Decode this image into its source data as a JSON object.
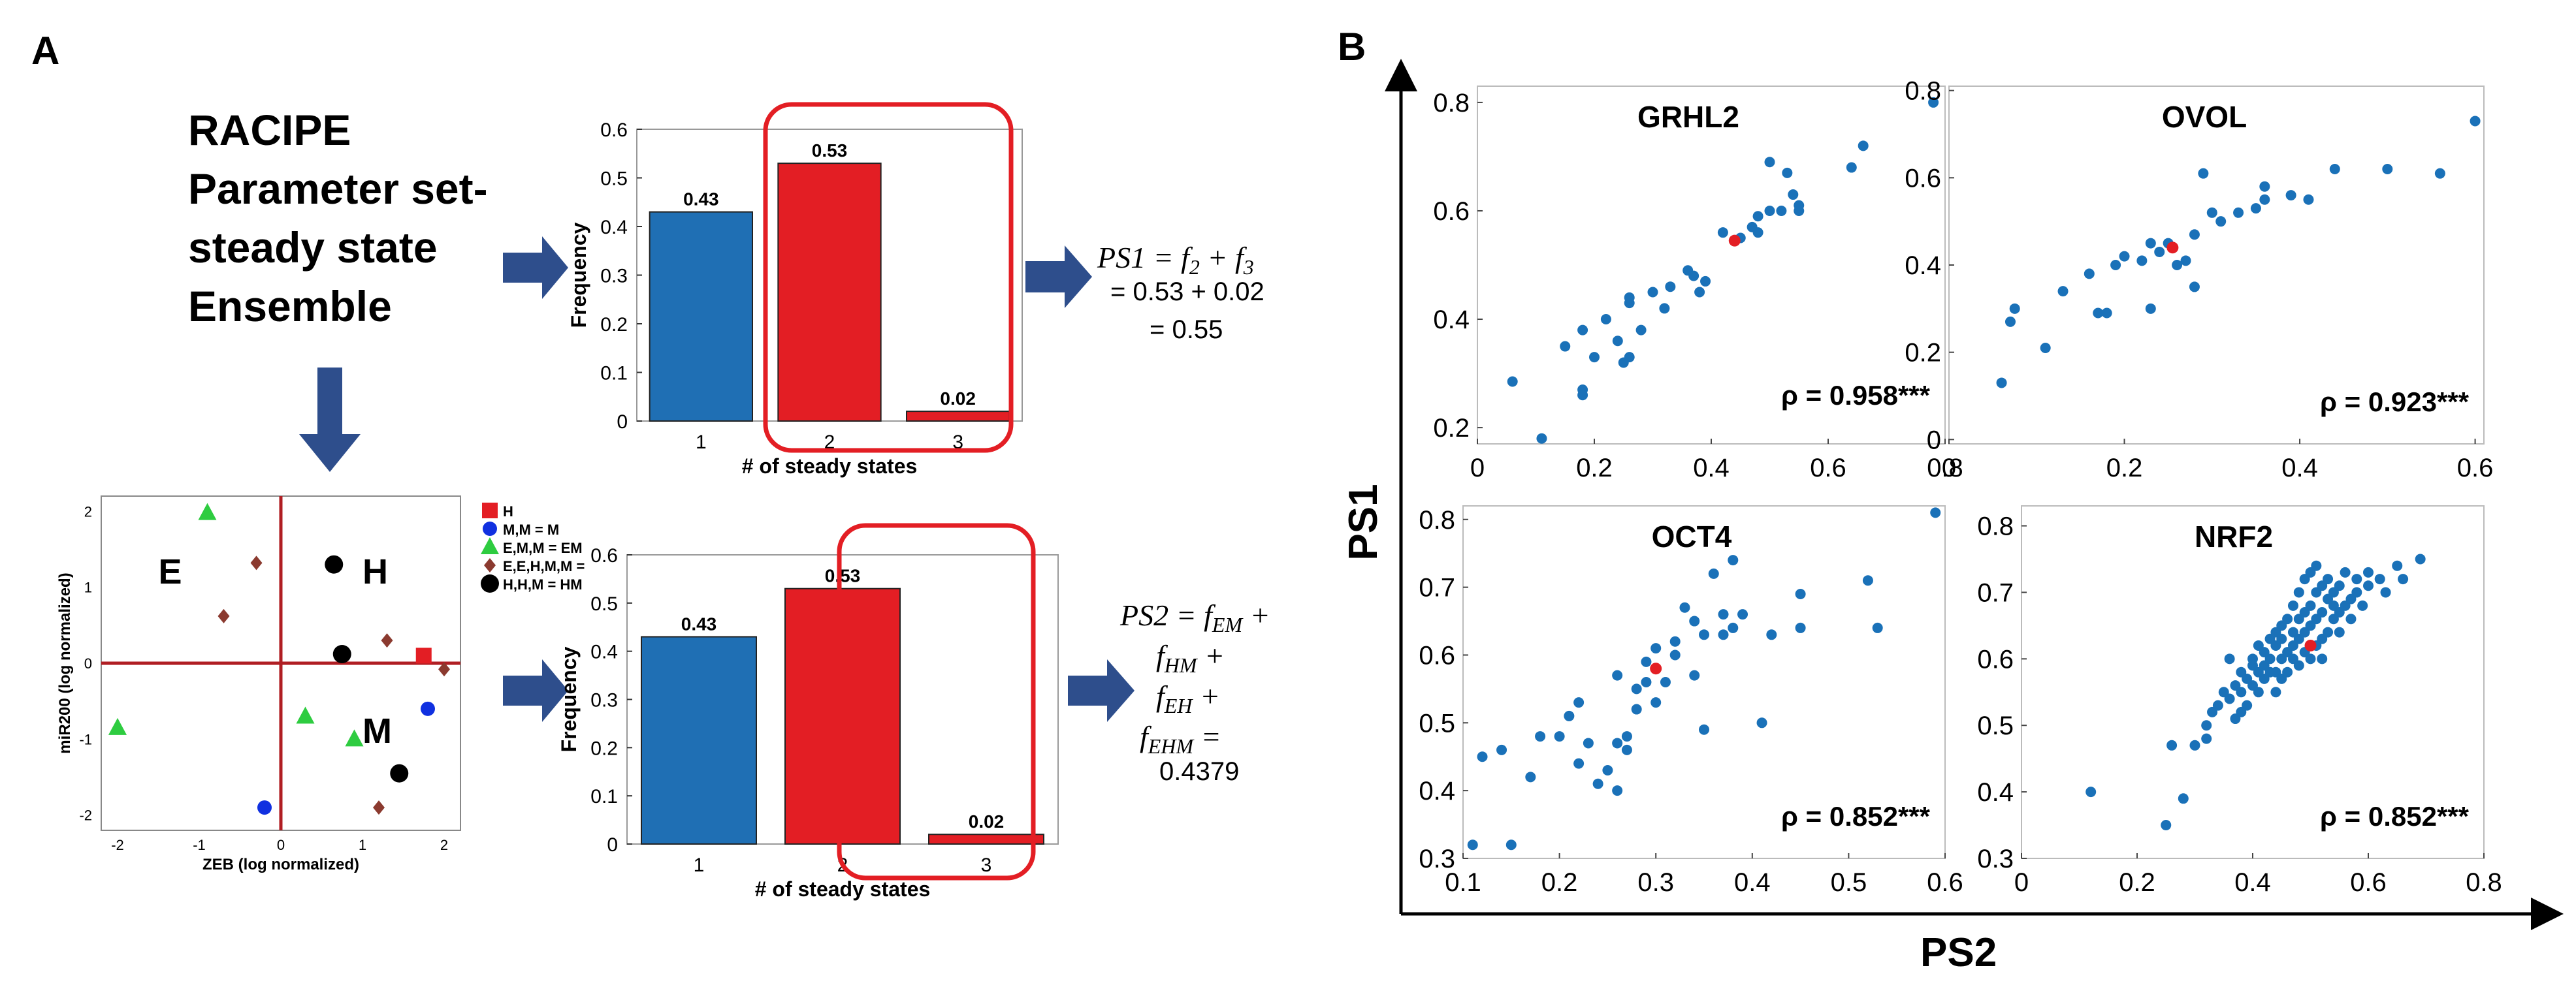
{
  "colors": {
    "blue": "#1f6fb4",
    "red": "#e31e24",
    "dot_blue": "#1a71b8",
    "dot_red": "#e31e24",
    "arrow": "#2e4e8c",
    "axis_red": "#b01e23",
    "diamond": "#8b3a2f",
    "green": "#2ecc40"
  },
  "panel_a": {
    "label": "A",
    "racipe_text": [
      "RACIPE",
      "Parameter set-",
      "steady state",
      "Ensemble"
    ],
    "ps1_formula": {
      "lhs": "PS1 = f",
      "sub1": "2",
      "plus": " + f",
      "sub2": "3",
      "line2": "= 0.53 + 0.02",
      "line3": "= 0.55"
    },
    "ps2_formula": {
      "line1": "PS2 = f",
      "sub1": "EM",
      "plus1": " +",
      "line2": "f",
      "sub2": "HM",
      "plus2": " +",
      "line3": "f",
      "sub3": "EH",
      "plus3": " +",
      "line4": "f",
      "sub4": "EHM",
      "eq": " =",
      "value": "0.4379"
    },
    "scatter": {
      "xlabel": "ZEB (log normalized)",
      "ylabel": "miR200 (log normalized)",
      "x_ticks": [
        "-2",
        "-1",
        "0",
        "1",
        "2"
      ],
      "y_ticks": [
        "2",
        "1",
        "0",
        "-1",
        "-2"
      ],
      "region_labels": {
        "E": "E",
        "H": "H",
        "M": "M"
      },
      "legend": [
        "H",
        "M,M = M",
        "E,M,M = EM",
        "E,E,H,M,M =",
        "H,H,M = HM"
      ],
      "points": [
        {
          "x": 1.75,
          "y": 0.1,
          "kind": "square"
        },
        {
          "x": 1.8,
          "y": -0.6,
          "kind": "circle_blue"
        },
        {
          "x": -0.2,
          "y": -1.9,
          "kind": "circle_blue"
        },
        {
          "x": -0.9,
          "y": 1.98,
          "kind": "triangle"
        },
        {
          "x": -2.0,
          "y": -0.85,
          "kind": "triangle"
        },
        {
          "x": 0.3,
          "y": -0.7,
          "kind": "triangle"
        },
        {
          "x": 0.9,
          "y": -1.0,
          "kind": "triangle"
        },
        {
          "x": -0.3,
          "y": 1.32,
          "kind": "diamond"
        },
        {
          "x": -0.7,
          "y": 0.62,
          "kind": "diamond"
        },
        {
          "x": 1.3,
          "y": 0.3,
          "kind": "diamond"
        },
        {
          "x": 2.0,
          "y": -0.08,
          "kind": "diamond"
        },
        {
          "x": 1.2,
          "y": -1.9,
          "kind": "diamond"
        },
        {
          "x": 0.65,
          "y": 1.3,
          "kind": "circle_black"
        },
        {
          "x": 0.75,
          "y": 0.12,
          "kind": "circle_black"
        },
        {
          "x": 1.45,
          "y": -1.45,
          "kind": "circle_black"
        }
      ]
    }
  },
  "panel_b": {
    "label": "B",
    "xlabel": "PS2",
    "ylabel": "PS1"
  },
  "chart_data": [
    {
      "type": "bar",
      "id": "bar_top",
      "categories": [
        "1",
        "2",
        "3"
      ],
      "values": [
        0.43,
        0.53,
        0.02
      ],
      "value_labels": [
        "0.43",
        "0.53",
        "0.02"
      ],
      "xlabel": "# of steady states",
      "ylabel": "Frequency",
      "ylim": [
        0,
        0.6
      ],
      "yticks": [
        "0",
        "0.1",
        "0.2",
        "0.3",
        "0.4",
        "0.5",
        "0.6"
      ],
      "highlight": [
        "2",
        "3"
      ]
    },
    {
      "type": "bar",
      "id": "bar_bottom",
      "categories": [
        "1",
        "2",
        "3"
      ],
      "values": [
        0.43,
        0.53,
        0.02
      ],
      "value_labels": [
        "0.43",
        "0.53",
        "0.02"
      ],
      "xlabel": "# of steady states",
      "ylabel": "Frequency",
      "ylim": [
        0,
        0.6
      ],
      "yticks": [
        "0",
        "0.1",
        "0.2",
        "0.3",
        "0.4",
        "0.5",
        "0.6"
      ],
      "highlight": [
        "2",
        "3"
      ]
    },
    {
      "type": "scatter",
      "id": "grhl2",
      "title": "GRHL2",
      "annotation": "ρ = 0.958***",
      "xlim": [
        0,
        0.8
      ],
      "ylim": [
        0.17,
        0.83
      ],
      "xticks": [
        "0",
        "0.2",
        "0.4",
        "0.6",
        "0.8"
      ],
      "yticks": [
        "0.2",
        "0.4",
        "0.6",
        "0.8"
      ],
      "highlight_point": [
        0.44,
        0.545
      ],
      "points": [
        [
          0.06,
          0.285
        ],
        [
          0.11,
          0.18
        ],
        [
          0.15,
          0.35
        ],
        [
          0.18,
          0.26
        ],
        [
          0.18,
          0.27
        ],
        [
          0.18,
          0.38
        ],
        [
          0.2,
          0.33
        ],
        [
          0.22,
          0.4
        ],
        [
          0.24,
          0.36
        ],
        [
          0.25,
          0.32
        ],
        [
          0.26,
          0.33
        ],
        [
          0.26,
          0.43
        ],
        [
          0.26,
          0.44
        ],
        [
          0.28,
          0.38
        ],
        [
          0.3,
          0.45
        ],
        [
          0.32,
          0.42
        ],
        [
          0.33,
          0.46
        ],
        [
          0.36,
          0.49
        ],
        [
          0.37,
          0.48
        ],
        [
          0.38,
          0.45
        ],
        [
          0.39,
          0.47
        ],
        [
          0.42,
          0.56
        ],
        [
          0.45,
          0.55
        ],
        [
          0.47,
          0.57
        ],
        [
          0.48,
          0.56
        ],
        [
          0.48,
          0.59
        ],
        [
          0.5,
          0.6
        ],
        [
          0.5,
          0.69
        ],
        [
          0.52,
          0.6
        ],
        [
          0.53,
          0.67
        ],
        [
          0.54,
          0.63
        ],
        [
          0.55,
          0.61
        ],
        [
          0.55,
          0.6
        ],
        [
          0.64,
          0.68
        ],
        [
          0.66,
          0.72
        ],
        [
          0.78,
          0.8
        ]
      ]
    },
    {
      "type": "scatter",
      "id": "ovol",
      "title": "OVOL",
      "annotation": "ρ = 0.923***",
      "xlim": [
        0,
        0.61
      ],
      "ylim": [
        -0.01,
        0.81
      ],
      "xticks": [
        "0",
        "0.2",
        "0.4",
        "0.6"
      ],
      "yticks": [
        "0",
        "0.2",
        "0.4",
        "0.6",
        "0.8"
      ],
      "highlight_point": [
        0.255,
        0.44
      ],
      "points": [
        [
          0.06,
          0.13
        ],
        [
          0.07,
          0.27
        ],
        [
          0.075,
          0.3
        ],
        [
          0.11,
          0.21
        ],
        [
          0.13,
          0.34
        ],
        [
          0.16,
          0.38
        ],
        [
          0.17,
          0.29
        ],
        [
          0.18,
          0.29
        ],
        [
          0.19,
          0.4
        ],
        [
          0.2,
          0.42
        ],
        [
          0.22,
          0.41
        ],
        [
          0.23,
          0.3
        ],
        [
          0.23,
          0.45
        ],
        [
          0.24,
          0.43
        ],
        [
          0.25,
          0.45
        ],
        [
          0.26,
          0.4
        ],
        [
          0.27,
          0.41
        ],
        [
          0.28,
          0.35
        ],
        [
          0.28,
          0.47
        ],
        [
          0.29,
          0.61
        ],
        [
          0.3,
          0.52
        ],
        [
          0.31,
          0.5
        ],
        [
          0.33,
          0.52
        ],
        [
          0.35,
          0.53
        ],
        [
          0.36,
          0.55
        ],
        [
          0.36,
          0.58
        ],
        [
          0.39,
          0.56
        ],
        [
          0.41,
          0.55
        ],
        [
          0.44,
          0.62
        ],
        [
          0.5,
          0.62
        ],
        [
          0.56,
          0.61
        ],
        [
          0.6,
          0.73
        ]
      ]
    },
    {
      "type": "scatter",
      "id": "oct4",
      "title": "OCT4",
      "annotation": "ρ = 0.852***",
      "xlim": [
        0.1,
        0.6
      ],
      "ylim": [
        0.3,
        0.82
      ],
      "xticks": [
        "0.1",
        "0.2",
        "0.3",
        "0.4",
        "0.5",
        "0.6"
      ],
      "yticks": [
        "0.3",
        "0.4",
        "0.5",
        "0.6",
        "0.7",
        "0.8"
      ],
      "highlight_point": [
        0.3,
        0.58
      ],
      "points": [
        [
          0.11,
          0.32
        ],
        [
          0.12,
          0.45
        ],
        [
          0.14,
          0.46
        ],
        [
          0.15,
          0.32
        ],
        [
          0.17,
          0.42
        ],
        [
          0.18,
          0.48
        ],
        [
          0.2,
          0.48
        ],
        [
          0.21,
          0.51
        ],
        [
          0.22,
          0.53
        ],
        [
          0.22,
          0.44
        ],
        [
          0.23,
          0.47
        ],
        [
          0.24,
          0.41
        ],
        [
          0.25,
          0.43
        ],
        [
          0.26,
          0.47
        ],
        [
          0.26,
          0.4
        ],
        [
          0.26,
          0.57
        ],
        [
          0.27,
          0.46
        ],
        [
          0.27,
          0.48
        ],
        [
          0.28,
          0.55
        ],
        [
          0.28,
          0.52
        ],
        [
          0.29,
          0.56
        ],
        [
          0.29,
          0.59
        ],
        [
          0.3,
          0.53
        ],
        [
          0.3,
          0.61
        ],
        [
          0.31,
          0.56
        ],
        [
          0.32,
          0.6
        ],
        [
          0.32,
          0.62
        ],
        [
          0.33,
          0.67
        ],
        [
          0.34,
          0.57
        ],
        [
          0.34,
          0.65
        ],
        [
          0.35,
          0.49
        ],
        [
          0.35,
          0.63
        ],
        [
          0.36,
          0.72
        ],
        [
          0.37,
          0.66
        ],
        [
          0.37,
          0.63
        ],
        [
          0.38,
          0.74
        ],
        [
          0.38,
          0.64
        ],
        [
          0.39,
          0.66
        ],
        [
          0.41,
          0.5
        ],
        [
          0.42,
          0.63
        ],
        [
          0.45,
          0.64
        ],
        [
          0.45,
          0.69
        ],
        [
          0.52,
          0.71
        ],
        [
          0.53,
          0.64
        ],
        [
          0.59,
          0.81
        ]
      ]
    },
    {
      "type": "scatter",
      "id": "nrf2",
      "title": "NRF2",
      "annotation": "ρ = 0.852***",
      "xlim": [
        0,
        0.8
      ],
      "ylim": [
        0.3,
        0.83
      ],
      "xticks": [
        "0",
        "0.2",
        "0.4",
        "0.6",
        "0.8"
      ],
      "yticks": [
        "0.3",
        "0.4",
        "0.5",
        "0.6",
        "0.7",
        "0.8"
      ],
      "highlight_point": [
        0.5,
        0.62
      ],
      "points": [
        [
          0.12,
          0.4
        ],
        [
          0.25,
          0.35
        ],
        [
          0.26,
          0.47
        ],
        [
          0.28,
          0.39
        ],
        [
          0.3,
          0.47
        ],
        [
          0.32,
          0.5
        ],
        [
          0.32,
          0.48
        ],
        [
          0.33,
          0.52
        ],
        [
          0.34,
          0.53
        ],
        [
          0.35,
          0.55
        ],
        [
          0.36,
          0.54
        ],
        [
          0.37,
          0.56
        ],
        [
          0.37,
          0.51
        ],
        [
          0.38,
          0.58
        ],
        [
          0.38,
          0.55
        ],
        [
          0.39,
          0.57
        ],
        [
          0.39,
          0.53
        ],
        [
          0.4,
          0.56
        ],
        [
          0.4,
          0.59
        ],
        [
          0.4,
          0.6
        ],
        [
          0.41,
          0.55
        ],
        [
          0.41,
          0.58
        ],
        [
          0.41,
          0.62
        ],
        [
          0.42,
          0.57
        ],
        [
          0.42,
          0.59
        ],
        [
          0.42,
          0.61
        ],
        [
          0.43,
          0.6
        ],
        [
          0.43,
          0.58
        ],
        [
          0.43,
          0.63
        ],
        [
          0.44,
          0.58
        ],
        [
          0.44,
          0.62
        ],
        [
          0.44,
          0.64
        ],
        [
          0.44,
          0.55
        ],
        [
          0.45,
          0.6
        ],
        [
          0.45,
          0.63
        ],
        [
          0.45,
          0.65
        ],
        [
          0.46,
          0.58
        ],
        [
          0.46,
          0.61
        ],
        [
          0.46,
          0.66
        ],
        [
          0.47,
          0.6
        ],
        [
          0.47,
          0.62
        ],
        [
          0.47,
          0.64
        ],
        [
          0.47,
          0.68
        ],
        [
          0.48,
          0.59
        ],
        [
          0.48,
          0.63
        ],
        [
          0.48,
          0.66
        ],
        [
          0.48,
          0.7
        ],
        [
          0.49,
          0.61
        ],
        [
          0.49,
          0.64
        ],
        [
          0.49,
          0.67
        ],
        [
          0.49,
          0.72
        ],
        [
          0.5,
          0.6
        ],
        [
          0.5,
          0.65
        ],
        [
          0.5,
          0.68
        ],
        [
          0.5,
          0.73
        ],
        [
          0.51,
          0.62
        ],
        [
          0.51,
          0.66
        ],
        [
          0.51,
          0.7
        ],
        [
          0.51,
          0.74
        ],
        [
          0.52,
          0.63
        ],
        [
          0.52,
          0.67
        ],
        [
          0.52,
          0.71
        ],
        [
          0.53,
          0.64
        ],
        [
          0.53,
          0.69
        ],
        [
          0.53,
          0.72
        ],
        [
          0.54,
          0.66
        ],
        [
          0.54,
          0.7
        ],
        [
          0.54,
          0.68
        ],
        [
          0.55,
          0.67
        ],
        [
          0.55,
          0.71
        ],
        [
          0.56,
          0.68
        ],
        [
          0.56,
          0.73
        ],
        [
          0.57,
          0.69
        ],
        [
          0.57,
          0.66
        ],
        [
          0.58,
          0.7
        ],
        [
          0.58,
          0.72
        ],
        [
          0.59,
          0.68
        ],
        [
          0.6,
          0.71
        ],
        [
          0.6,
          0.73
        ],
        [
          0.62,
          0.72
        ],
        [
          0.63,
          0.7
        ],
        [
          0.65,
          0.74
        ],
        [
          0.66,
          0.72
        ],
        [
          0.69,
          0.75
        ],
        [
          0.36,
          0.6
        ],
        [
          0.38,
          0.52
        ],
        [
          0.45,
          0.57
        ],
        [
          0.52,
          0.6
        ],
        [
          0.55,
          0.64
        ]
      ]
    }
  ]
}
